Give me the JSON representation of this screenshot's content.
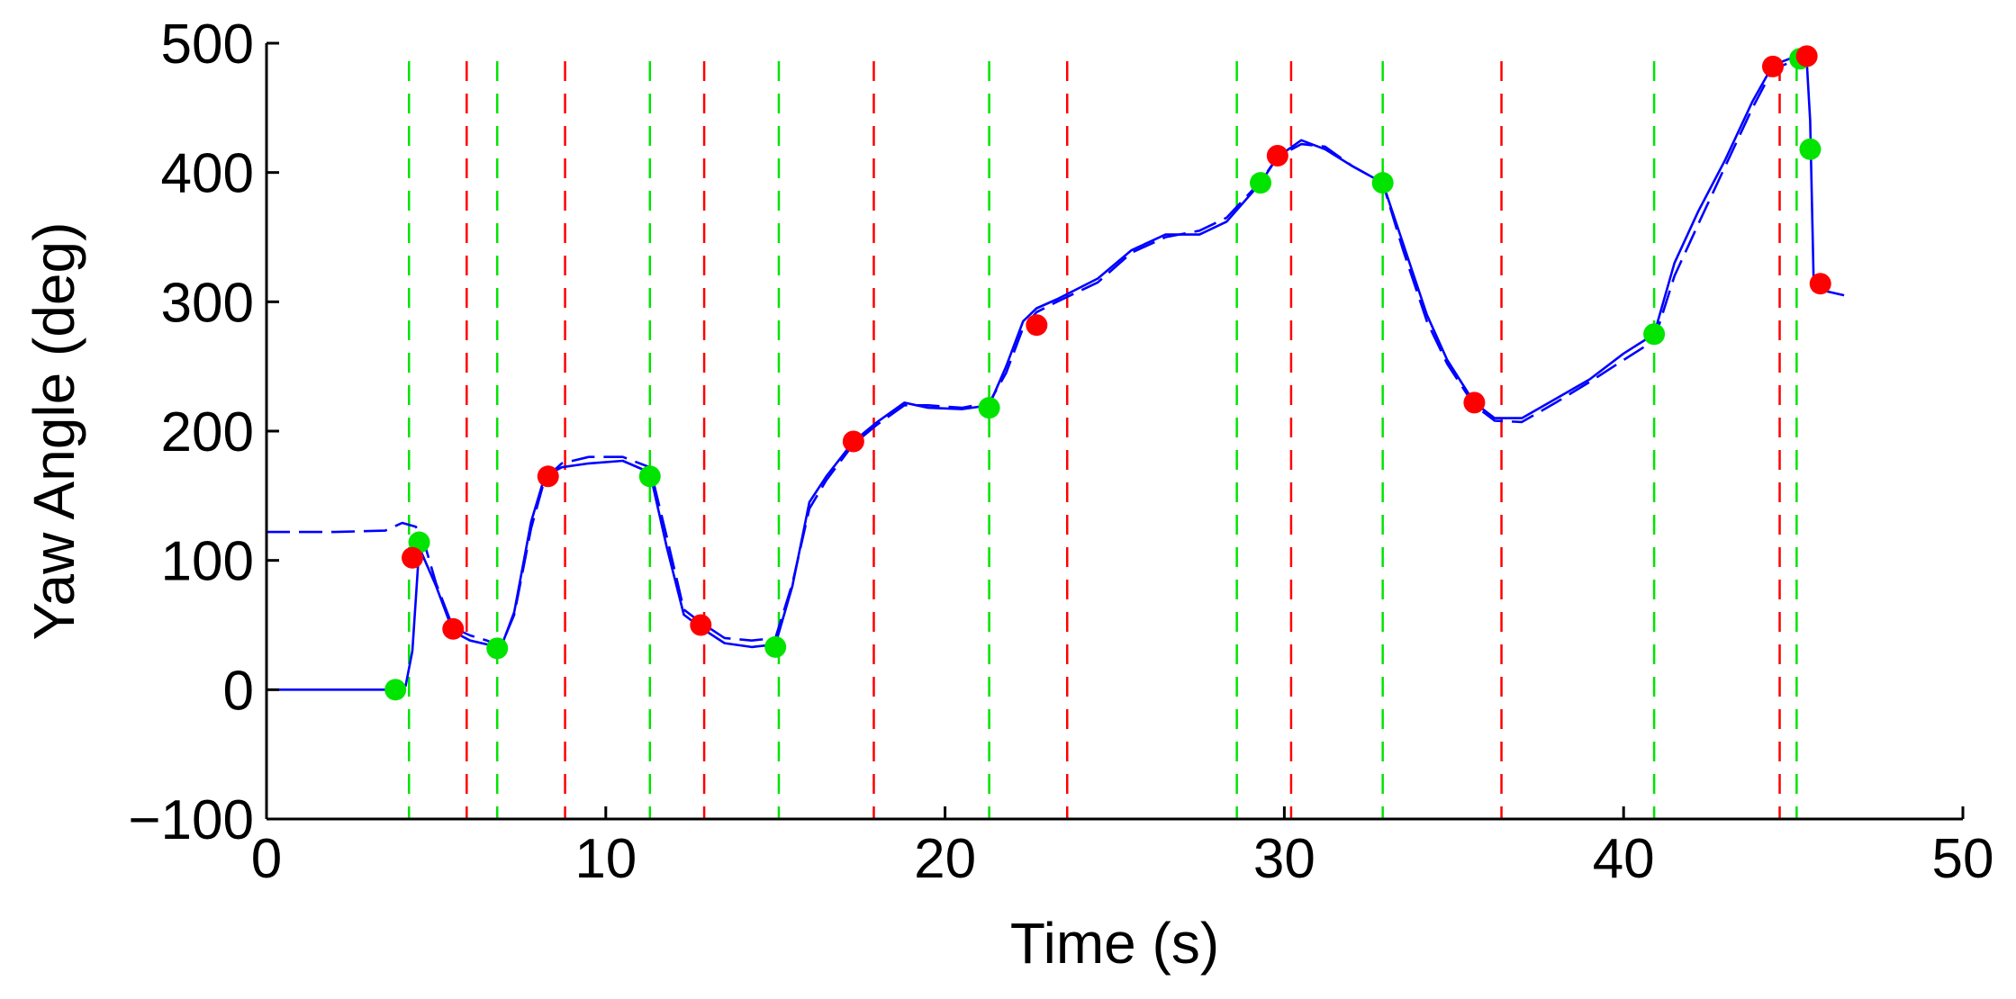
{
  "chart_data": {
    "type": "line",
    "title": "",
    "xlabel": "Time (s)",
    "ylabel": "Yaw Angle (deg)",
    "xlim": [
      0,
      50
    ],
    "ylim": [
      -100,
      500
    ],
    "xticks": [
      0,
      10,
      20,
      30,
      40,
      50
    ],
    "xtick_labels": [
      "0",
      "10",
      "20",
      "30",
      "40",
      "50"
    ],
    "yticks": [
      -100,
      0,
      100,
      200,
      300,
      400,
      500
    ],
    "ytick_labels": [
      "−100",
      "0",
      "100",
      "200",
      "300",
      "400",
      "500"
    ],
    "grid": false,
    "legend": "none",
    "series": [
      {
        "style": "solid",
        "color": "#0000ff",
        "x": [
          0,
          2,
          3.8,
          4.1,
          4.3,
          4.5,
          5.0,
          5.5,
          6.0,
          6.5,
          6.9,
          7.3,
          7.8,
          8.2,
          8.7,
          9.5,
          10.5,
          11.3,
          11.8,
          12.3,
          12.8,
          13.5,
          14.3,
          15.0,
          15.5,
          16.0,
          16.5,
          17.3,
          18.0,
          18.8,
          19.5,
          20.5,
          21.3,
          21.8,
          22.3,
          22.7,
          23.3,
          24.5,
          25.5,
          26.5,
          27.5,
          28.3,
          29.3,
          29.8,
          30.5,
          31.2,
          32.0,
          32.9,
          33.5,
          34.2,
          34.8,
          35.6,
          36.2,
          37.0,
          38.0,
          39.0,
          40.0,
          40.9,
          41.5,
          42.2,
          43.0,
          43.8,
          44.4,
          44.9,
          45.2,
          45.4,
          45.5,
          45.6,
          46.0,
          46.5
        ],
        "y": [
          0,
          0,
          0,
          3,
          30,
          110,
          80,
          45,
          38,
          35,
          32,
          60,
          130,
          165,
          172,
          175,
          177,
          168,
          110,
          58,
          48,
          36,
          33,
          35,
          80,
          145,
          165,
          192,
          207,
          222,
          218,
          217,
          220,
          250,
          285,
          295,
          302,
          318,
          340,
          352,
          352,
          362,
          392,
          412,
          425,
          418,
          405,
          392,
          345,
          290,
          255,
          222,
          210,
          210,
          225,
          240,
          260,
          275,
          330,
          370,
          410,
          455,
          483,
          488,
          487,
          485,
          440,
          318,
          308,
          305
        ]
      },
      {
        "style": "dashed",
        "color": "#0000ff",
        "x": [
          0,
          2,
          3.5,
          4.0,
          4.4,
          4.6,
          5.0,
          5.5,
          6.0,
          6.5,
          6.9,
          7.3,
          7.8,
          8.2,
          8.7,
          9.5,
          10.5,
          11.3,
          11.8,
          12.3,
          12.8,
          13.5,
          14.3,
          15.0,
          15.5,
          16.0,
          16.5,
          17.3,
          18.0,
          18.8,
          19.5,
          20.5,
          21.3,
          21.8,
          22.3,
          22.7,
          23.3,
          24.5,
          25.5,
          26.5,
          27.5,
          28.3,
          29.3,
          29.8,
          30.5,
          31.2,
          32.0,
          32.9,
          33.5,
          34.2,
          34.8,
          35.6,
          36.2,
          37.0,
          38.0,
          39.0,
          40.0,
          40.9,
          41.5,
          42.2,
          43.0,
          43.8,
          44.4,
          44.9,
          45.2,
          45.4
        ],
        "y": [
          122,
          122,
          123,
          129,
          126,
          118,
          82,
          48,
          42,
          38,
          33,
          58,
          125,
          163,
          175,
          180,
          180,
          172,
          118,
          62,
          52,
          40,
          38,
          40,
          82,
          140,
          162,
          190,
          205,
          220,
          220,
          218,
          222,
          245,
          280,
          292,
          300,
          315,
          338,
          350,
          355,
          365,
          393,
          412,
          422,
          420,
          405,
          392,
          340,
          285,
          252,
          220,
          208,
          207,
          222,
          238,
          255,
          270,
          320,
          360,
          405,
          450,
          480,
          485,
          488,
          485
        ]
      }
    ],
    "markers": {
      "green": {
        "color": "#00e400",
        "x": [
          3.8,
          4.5,
          6.8,
          11.3,
          15.0,
          21.3,
          29.3,
          32.9,
          40.9,
          45.2,
          45.5
        ],
        "y": [
          0,
          114,
          32,
          165,
          33,
          218,
          392,
          392,
          275,
          488,
          418
        ]
      },
      "red": {
        "color": "#ff0000",
        "x": [
          4.3,
          5.5,
          8.3,
          12.8,
          17.3,
          22.7,
          29.8,
          35.6,
          44.4,
          45.4,
          45.8
        ],
        "y": [
          102,
          47,
          165,
          50,
          192,
          282,
          413,
          222,
          482,
          490,
          314
        ]
      }
    },
    "vlines": {
      "green": {
        "color": "#00e400",
        "x": [
          4.2,
          6.8,
          11.3,
          15.1,
          21.3,
          28.6,
          32.9,
          40.9,
          45.1
        ]
      },
      "red": {
        "color": "#ff0000",
        "x": [
          5.9,
          8.8,
          12.9,
          17.9,
          23.6,
          30.2,
          36.4,
          44.6
        ]
      }
    }
  }
}
